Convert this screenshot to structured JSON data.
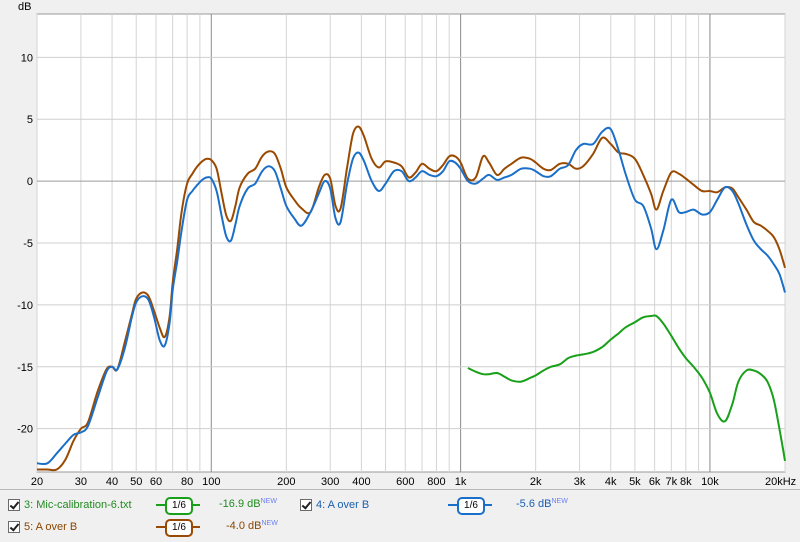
{
  "chart_data": {
    "type": "line",
    "ylabel": "dB",
    "xlabel": "",
    "x_scale": "log",
    "xlim": [
      20,
      20000
    ],
    "ylim": [
      -23.5,
      13.5
    ],
    "grid": true,
    "x_tick_labels": [
      "20",
      "30",
      "40",
      "50",
      "60",
      "80",
      "100",
      "200",
      "300",
      "400",
      "600",
      "800",
      "1k",
      "2k",
      "3k",
      "4k",
      "5k",
      "6k",
      "7k",
      "8k",
      "10k",
      "20kHz"
    ],
    "x_tick_values": [
      20,
      30,
      40,
      50,
      60,
      80,
      100,
      200,
      300,
      400,
      600,
      800,
      1000,
      2000,
      3000,
      4000,
      5000,
      6000,
      7000,
      8000,
      10000,
      20000
    ],
    "y_tick_labels": [
      "10",
      "5",
      "0",
      "-5",
      "-10",
      "-15",
      "-20"
    ],
    "y_tick_values": [
      10,
      5,
      0,
      -5,
      -10,
      -15,
      -20
    ],
    "series": [
      {
        "name": "A over B",
        "color": "#9a4a00",
        "x": [
          20,
          22,
          24,
          26,
          28,
          30,
          32,
          35,
          38,
          40,
          42,
          45,
          48,
          50,
          53,
          56,
          59,
          62,
          65,
          68,
          70,
          73,
          76,
          80,
          84,
          88,
          92,
          96,
          100,
          105,
          110,
          115,
          120,
          125,
          130,
          140,
          150,
          160,
          170,
          180,
          190,
          200,
          215,
          230,
          250,
          270,
          285,
          300,
          315,
          330,
          350,
          370,
          390,
          410,
          440,
          470,
          500,
          540,
          580,
          620,
          660,
          700,
          750,
          800,
          850,
          900,
          950,
          1000,
          1070,
          1150,
          1230,
          1300,
          1400,
          1500,
          1600,
          1750,
          1900,
          2000,
          2150,
          2300,
          2500,
          2700,
          2900,
          3100,
          3400,
          3700,
          4000,
          4300,
          4600,
          5000,
          5400,
          5800,
          6100,
          6500,
          7000,
          7500,
          8000,
          8600,
          9300,
          10000,
          10700,
          11500,
          12300,
          13000,
          14000,
          15000,
          16000,
          17000,
          18000,
          19000,
          20000
        ],
        "y": [
          -23.3,
          -23.3,
          -23.3,
          -22.5,
          -21.0,
          -20.0,
          -19.5,
          -17.0,
          -15.2,
          -15.0,
          -15.2,
          -13.0,
          -10.8,
          -9.5,
          -9.0,
          -9.3,
          -10.5,
          -11.8,
          -12.6,
          -11.0,
          -8.2,
          -5.5,
          -2.5,
          -0.2,
          0.6,
          1.2,
          1.6,
          1.8,
          1.7,
          1.0,
          -1.0,
          -2.8,
          -3.2,
          -2.0,
          -0.5,
          0.6,
          1.0,
          2.0,
          2.4,
          2.2,
          1.0,
          -0.5,
          -1.5,
          -2.2,
          -2.5,
          -0.5,
          0.5,
          0.2,
          -2.0,
          -2.2,
          1.0,
          3.8,
          4.4,
          3.6,
          1.8,
          1.1,
          1.6,
          1.5,
          1.2,
          0.3,
          0.7,
          1.4,
          1.0,
          0.8,
          1.3,
          2.0,
          2.0,
          1.5,
          0.2,
          0.3,
          2.0,
          1.5,
          0.5,
          1.0,
          1.4,
          1.9,
          1.8,
          1.5,
          1.0,
          0.9,
          1.4,
          1.4,
          1.0,
          1.2,
          2.2,
          3.5,
          3.0,
          2.3,
          2.2,
          1.8,
          0.5,
          -1.0,
          -2.3,
          -0.8,
          0.7,
          0.6,
          0.2,
          -0.3,
          -0.8,
          -0.8,
          -0.9,
          -0.5,
          -0.6,
          -1.3,
          -2.3,
          -3.3,
          -3.6,
          -4.0,
          -4.5,
          -5.5,
          -7.0
        ]
      },
      {
        "name": "A over B",
        "color": "#1a6fc8",
        "x": [
          20,
          22,
          24,
          26,
          28,
          30,
          32,
          35,
          38,
          40,
          42,
          45,
          48,
          50,
          53,
          56,
          59,
          62,
          65,
          68,
          70,
          73,
          76,
          80,
          84,
          88,
          92,
          96,
          100,
          105,
          110,
          115,
          120,
          125,
          130,
          140,
          150,
          160,
          170,
          180,
          190,
          200,
          215,
          230,
          250,
          270,
          285,
          300,
          315,
          330,
          350,
          370,
          390,
          410,
          440,
          470,
          500,
          540,
          580,
          620,
          660,
          700,
          750,
          800,
          850,
          900,
          950,
          1000,
          1070,
          1150,
          1230,
          1300,
          1400,
          1500,
          1600,
          1750,
          1900,
          2000,
          2150,
          2300,
          2500,
          2700,
          2900,
          3100,
          3400,
          3700,
          4000,
          4300,
          4600,
          5000,
          5400,
          5800,
          6100,
          6500,
          7000,
          7500,
          8000,
          8600,
          9300,
          10000,
          10700,
          11500,
          12300,
          13000,
          14000,
          15000,
          16000,
          17000,
          18000,
          19000,
          20000
        ],
        "y": [
          -22.8,
          -22.8,
          -22.0,
          -21.2,
          -20.5,
          -20.3,
          -19.8,
          -17.5,
          -15.4,
          -15.0,
          -15.2,
          -13.5,
          -11.0,
          -9.8,
          -9.3,
          -9.6,
          -11.0,
          -12.8,
          -13.3,
          -11.5,
          -8.8,
          -6.5,
          -4.0,
          -1.5,
          -0.8,
          -0.3,
          0.1,
          0.3,
          0.2,
          -0.8,
          -2.8,
          -4.5,
          -4.8,
          -3.5,
          -2.0,
          -0.6,
          -0.2,
          0.8,
          1.2,
          0.8,
          -0.6,
          -2.0,
          -3.0,
          -3.6,
          -2.5,
          -1.0,
          0.0,
          -0.6,
          -3.0,
          -3.3,
          -0.3,
          1.8,
          2.3,
          1.6,
          0.0,
          -0.8,
          -0.2,
          0.8,
          0.8,
          0.0,
          0.3,
          0.8,
          0.5,
          0.4,
          0.8,
          1.6,
          1.5,
          1.0,
          0.0,
          -0.2,
          0.2,
          0.5,
          0.1,
          0.3,
          0.5,
          1.0,
          1.0,
          0.8,
          0.4,
          0.4,
          1.0,
          1.3,
          2.5,
          3.0,
          3.0,
          4.0,
          4.2,
          2.5,
          0.5,
          -1.5,
          -2.0,
          -3.8,
          -5.5,
          -4.0,
          -1.5,
          -2.5,
          -2.5,
          -2.3,
          -2.7,
          -2.5,
          -1.5,
          -0.5,
          -0.8,
          -1.8,
          -3.5,
          -4.8,
          -5.5,
          -6.0,
          -6.7,
          -7.5,
          -9.0
        ]
      },
      {
        "name": "Mic-calibration-6.txt",
        "color": "#19a019",
        "x": [
          1070,
          1150,
          1230,
          1300,
          1400,
          1500,
          1600,
          1750,
          1900,
          2000,
          2150,
          2300,
          2500,
          2700,
          2900,
          3100,
          3400,
          3700,
          4000,
          4300,
          4600,
          5000,
          5400,
          5800,
          6100,
          6500,
          7000,
          7500,
          8000,
          8600,
          9300,
          10000,
          10700,
          11500,
          12300,
          13000,
          14000,
          15000,
          16000,
          17000,
          18000,
          19000,
          20000
        ],
        "y": [
          -15.1,
          -15.4,
          -15.6,
          -15.6,
          -15.5,
          -15.8,
          -16.1,
          -16.2,
          -15.9,
          -15.7,
          -15.3,
          -15.0,
          -14.8,
          -14.3,
          -14.1,
          -14.0,
          -13.8,
          -13.4,
          -12.8,
          -12.3,
          -11.8,
          -11.4,
          -11.0,
          -10.9,
          -10.9,
          -11.5,
          -12.5,
          -13.5,
          -14.3,
          -15.0,
          -15.9,
          -17.1,
          -18.8,
          -19.4,
          -18.0,
          -16.2,
          -15.3,
          -15.3,
          -15.6,
          -16.2,
          -17.6,
          -20.0,
          -22.6
        ]
      }
    ]
  },
  "legend": {
    "items": [
      {
        "id": "3",
        "label": "3: Mic-calibration-6.txt",
        "smoothing": "1/6",
        "value": "-16.9 dB",
        "badge": "NEW",
        "color": "#19a019",
        "label_color": "#228b22",
        "value_color": "#228b22"
      },
      {
        "id": "4",
        "label": "4: A over B",
        "smoothing": "1/6",
        "value": "-5.6 dB",
        "badge": "NEW",
        "color": "#1a6fc8",
        "label_color": "#1a5fb0",
        "value_color": "#1a5fb0"
      },
      {
        "id": "5",
        "label": "5: A over B",
        "smoothing": "1/6",
        "value": "-4.0 dB",
        "badge": "NEW",
        "color": "#9a4a00",
        "label_color": "#8b4500",
        "value_color": "#8b4500"
      }
    ]
  }
}
